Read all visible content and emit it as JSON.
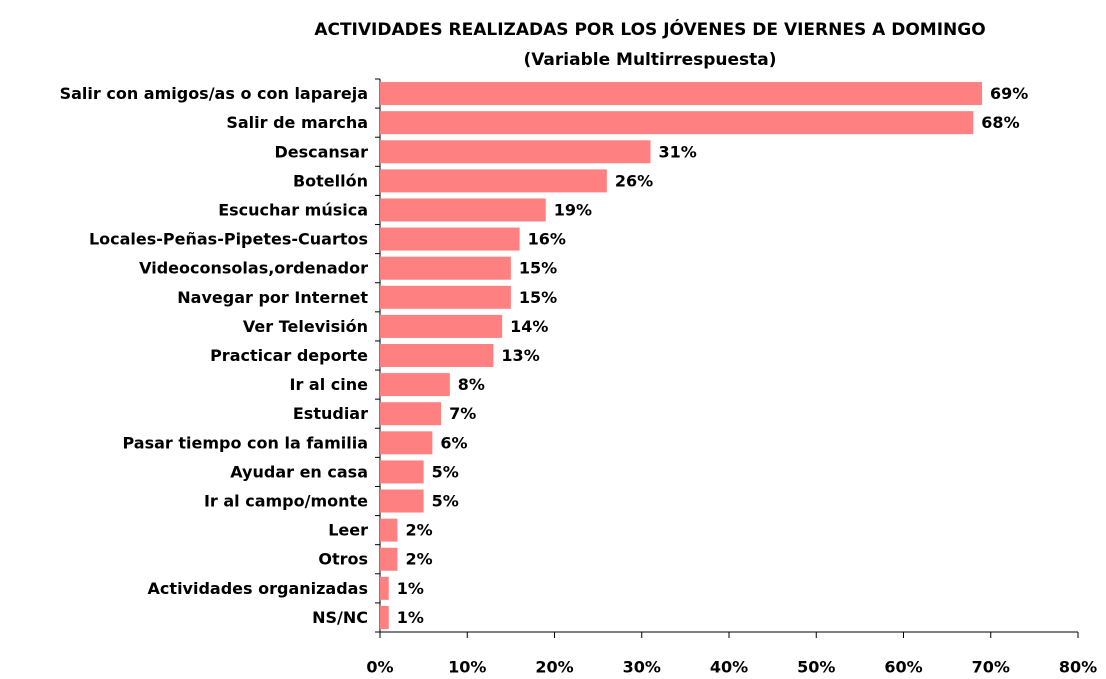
{
  "chart_data": {
    "type": "bar",
    "orientation": "horizontal",
    "title": "ACTIVIDADES REALIZADAS POR LOS JÓVENES DE VIERNES A DOMINGO",
    "subtitle": "(Variable Multirrespuesta)",
    "categories": [
      "Salir con amigos/as o con lapareja",
      "Salir de marcha",
      "Descansar",
      "Botellón",
      "Escuchar música",
      "Locales-Peñas-Pipetes-Cuartos",
      "Videoconsolas,ordenador",
      "Navegar por Internet",
      "Ver Televisión",
      "Practicar deporte",
      "Ir al cine",
      "Estudiar",
      "Pasar tiempo con la familia",
      "Ayudar en casa",
      "Ir al campo/monte",
      "Leer",
      "Otros",
      "Actividades organizadas",
      "NS/NC"
    ],
    "values": [
      69,
      68,
      31,
      26,
      19,
      16,
      15,
      15,
      14,
      13,
      8,
      7,
      6,
      5,
      5,
      2,
      2,
      1,
      1
    ],
    "value_labels": [
      "69%",
      "68%",
      "31%",
      "26%",
      "19%",
      "16%",
      "15%",
      "15%",
      "14%",
      "13%",
      "8%",
      "7%",
      "6%",
      "5%",
      "5%",
      "2%",
      "2%",
      "1%",
      "1%"
    ],
    "color": "#ff8080",
    "xlim": [
      0,
      80
    ],
    "xticks": [
      {
        "value": 0,
        "label": "0%"
      },
      {
        "value": 10,
        "label": "10%"
      },
      {
        "value": 20,
        "label": "20%"
      },
      {
        "value": 30,
        "label": "30%"
      },
      {
        "value": 40,
        "label": "40%"
      },
      {
        "value": 50,
        "label": "50%"
      },
      {
        "value": 60,
        "label": "60%"
      },
      {
        "value": 70,
        "label": "70%"
      },
      {
        "value": 80,
        "label": "80%"
      }
    ],
    "grid": false
  }
}
